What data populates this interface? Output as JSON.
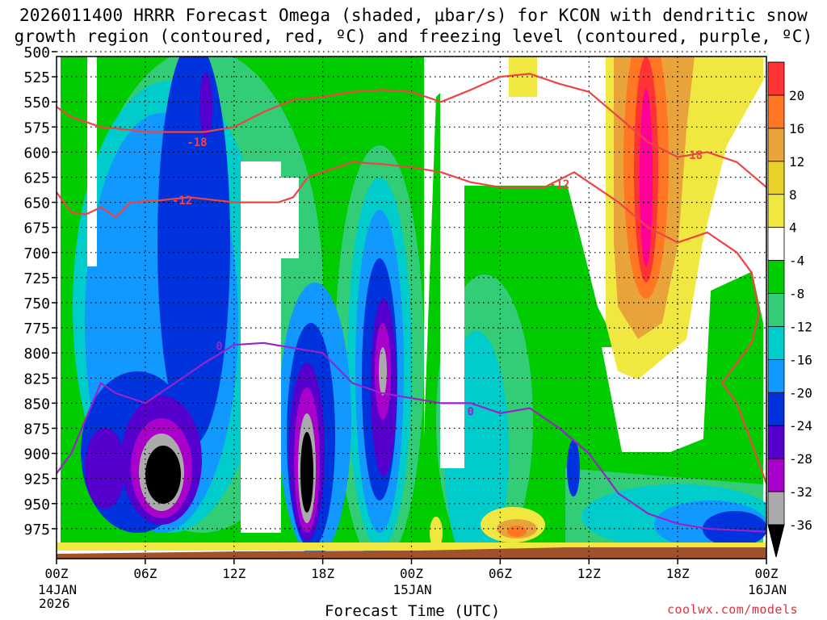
{
  "chart_data": {
    "type": "heatmap",
    "title_line1": "2026011400 HRRR Forecast Omega (shaded, μbar/s) for KCON with dendritic snow",
    "title_line2": "growth region (contoured, red, ºC) and freezing level (contoured, purple, ºC)",
    "xlabel": "Forecast Time (UTC)",
    "credit": "coolwx.com/models",
    "x_ticks": [
      {
        "hour": 0,
        "label": "00Z",
        "date": "14JAN",
        "year": "2026"
      },
      {
        "hour": 6,
        "label": "06Z"
      },
      {
        "hour": 12,
        "label": "12Z"
      },
      {
        "hour": 18,
        "label": "18Z"
      },
      {
        "hour": 24,
        "label": "00Z",
        "date": "15JAN"
      },
      {
        "hour": 30,
        "label": "06Z"
      },
      {
        "hour": 36,
        "label": "12Z"
      },
      {
        "hour": 42,
        "label": "18Z"
      },
      {
        "hour": 48,
        "label": "00Z",
        "date": "16JAN"
      }
    ],
    "xlim": [
      0,
      48
    ],
    "y_levels_hpa": [
      500,
      525,
      550,
      575,
      600,
      625,
      650,
      675,
      700,
      725,
      750,
      775,
      800,
      825,
      850,
      875,
      900,
      925,
      950,
      975
    ],
    "ylim": [
      500,
      1000
    ],
    "colorbar": {
      "labels": [
        "20",
        "16",
        "12",
        "8",
        "4",
        "-4",
        "-8",
        "-12",
        "-16",
        "-20",
        "-24",
        "-28",
        "-32",
        "-36"
      ],
      "colors": [
        "#ff0099",
        "#ff3333",
        "#ff7722",
        "#e8a33a",
        "#e8d22a",
        "#f0e840",
        "#ffffff",
        "#00cc00",
        "#33cc77",
        "#00cccc",
        "#1199ff",
        "#0033dd",
        "#5500cc",
        "#aa00cc",
        "#aaaaaa",
        "#000000"
      ]
    },
    "contours": [
      {
        "name": "-18",
        "color": "#ee4444",
        "points": [
          [
            0,
            555
          ],
          [
            1,
            565
          ],
          [
            3,
            575
          ],
          [
            5,
            578
          ],
          [
            6,
            580
          ],
          [
            8,
            580
          ],
          [
            10,
            580
          ],
          [
            12,
            575
          ],
          [
            14,
            560
          ],
          [
            16,
            548
          ],
          [
            18,
            545
          ],
          [
            20,
            540
          ],
          [
            22,
            538
          ],
          [
            24,
            540
          ],
          [
            26,
            550
          ],
          [
            28,
            538
          ],
          [
            30,
            525
          ],
          [
            32,
            522
          ],
          [
            34,
            532
          ],
          [
            36,
            540
          ],
          [
            38,
            565
          ],
          [
            40,
            590
          ],
          [
            42,
            605
          ],
          [
            44,
            600
          ],
          [
            46,
            610
          ],
          [
            48,
            635
          ]
        ]
      },
      {
        "name": "-12",
        "color": "#ee4444",
        "points": [
          [
            0,
            640
          ],
          [
            1,
            660
          ],
          [
            2,
            662
          ],
          [
            3,
            655
          ],
          [
            4,
            665
          ],
          [
            5,
            650
          ],
          [
            7,
            648
          ],
          [
            9,
            645
          ],
          [
            12,
            650
          ],
          [
            15,
            650
          ],
          [
            16,
            645
          ],
          [
            17,
            625
          ],
          [
            18,
            620
          ],
          [
            20,
            610
          ],
          [
            22,
            612
          ],
          [
            24,
            615
          ],
          [
            26,
            620
          ],
          [
            28,
            630
          ],
          [
            30,
            635
          ],
          [
            33,
            635
          ],
          [
            35,
            620
          ],
          [
            37,
            640
          ],
          [
            38,
            650
          ],
          [
            40,
            675
          ],
          [
            42,
            690
          ],
          [
            44,
            680
          ],
          [
            46,
            700
          ],
          [
            47,
            720
          ],
          [
            47.5,
            760
          ],
          [
            47,
            790
          ],
          [
            45,
            830
          ],
          [
            46,
            850
          ],
          [
            48,
            930
          ]
        ]
      },
      {
        "name": "0",
        "color": "#9922cc",
        "points": [
          [
            0,
            920
          ],
          [
            1,
            900
          ],
          [
            2,
            865
          ],
          [
            3,
            830
          ],
          [
            4,
            840
          ],
          [
            6,
            850
          ],
          [
            8,
            830
          ],
          [
            10,
            810
          ],
          [
            12,
            792
          ],
          [
            14,
            790
          ],
          [
            16,
            795
          ],
          [
            18,
            800
          ],
          [
            20,
            830
          ],
          [
            22,
            840
          ],
          [
            24,
            845
          ],
          [
            26,
            850
          ],
          [
            28,
            850
          ],
          [
            30,
            860
          ],
          [
            32,
            855
          ],
          [
            34,
            875
          ],
          [
            36,
            900
          ],
          [
            38,
            940
          ],
          [
            40,
            960
          ],
          [
            42,
            970
          ],
          [
            44,
            975
          ],
          [
            48,
            978
          ]
        ]
      }
    ],
    "contour_labels": [
      {
        "text": "-18",
        "color": "#ee4444",
        "x": 9.5,
        "y": 590
      },
      {
        "text": "-12",
        "color": "#ee4444",
        "x": 8.5,
        "y": 648
      },
      {
        "text": "-12",
        "color": "#ee4444",
        "x": 34,
        "y": 632
      },
      {
        "text": "-18",
        "color": "#ee4444",
        "x": 43,
        "y": 603
      },
      {
        "text": "0",
        "color": "#9922cc",
        "x": 11,
        "y": 793
      },
      {
        "text": "0",
        "color": "#9922cc",
        "x": 28,
        "y": 858
      }
    ]
  }
}
